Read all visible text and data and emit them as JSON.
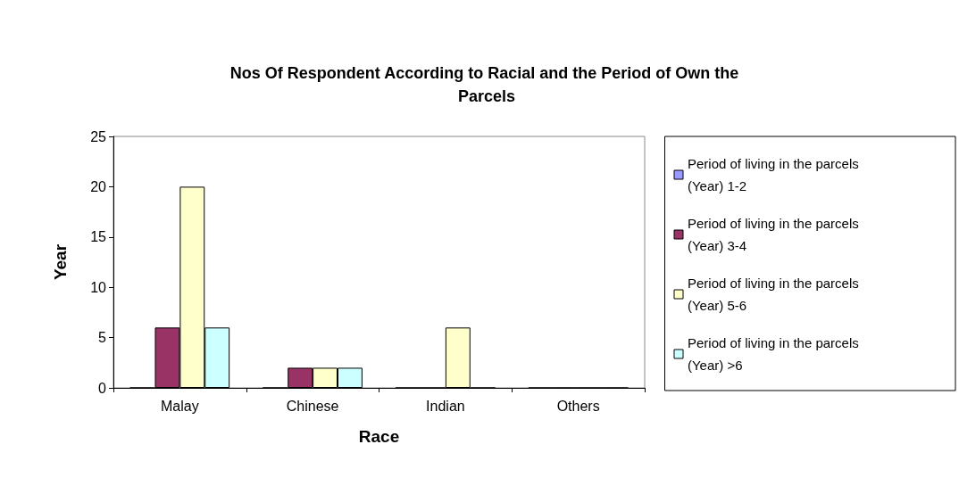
{
  "chart_data": {
    "type": "bar",
    "title": "Nos Of Respondent According to Racial and the Period of Own the Parcels",
    "xlabel": "Race",
    "ylabel": "Year",
    "categories": [
      "Malay",
      "Chinese",
      "Indian",
      "Others"
    ],
    "series": [
      {
        "name": "Period of living in the parcels (Year) 1-2",
        "color": "#9999ff",
        "values": [
          0,
          0,
          0,
          0
        ]
      },
      {
        "name": "Period of living in the parcels (Year) 3-4",
        "color": "#993366",
        "values": [
          6,
          2,
          0,
          0
        ]
      },
      {
        "name": "Period of living in the parcels (Year) 5-6",
        "color": "#ffffcc",
        "values": [
          20,
          2,
          6,
          0
        ]
      },
      {
        "name": "Period of living in the parcels (Year) >6",
        "color": "#ccffff",
        "values": [
          6,
          2,
          0,
          0
        ]
      }
    ],
    "ylim": [
      0,
      25
    ],
    "yticks": [
      0,
      5,
      10,
      15,
      20,
      25
    ],
    "grid": false,
    "legend": "right"
  }
}
